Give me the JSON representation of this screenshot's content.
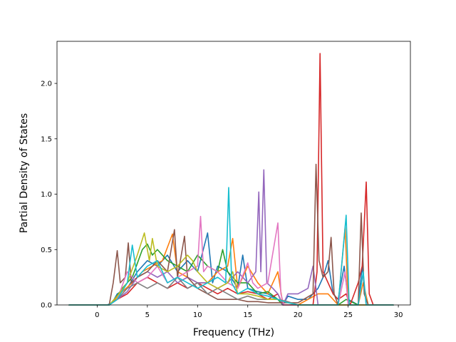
{
  "chart_data": {
    "type": "line",
    "title": "",
    "xlabel": "Frequency (THz)",
    "ylabel": "Partial Density of States",
    "xlim": [
      -4.0,
      31.2
    ],
    "ylim": [
      0,
      2.38
    ],
    "x_ticks": [
      0,
      5,
      10,
      15,
      20,
      25,
      30
    ],
    "y_ticks": [
      0.0,
      0.5,
      1.0,
      1.5,
      2.0
    ],
    "y_tick_labels": [
      "0.0",
      "0.5",
      "1.0",
      "1.5",
      "2.0"
    ],
    "grid": false,
    "legend": "none",
    "series": [
      {
        "color": "#1f77b4",
        "points": [
          [
            -2.8,
            0
          ],
          [
            1,
            0
          ],
          [
            1.5,
            0.02
          ],
          [
            2,
            0.1
          ],
          [
            3,
            0.15
          ],
          [
            4,
            0.3
          ],
          [
            5,
            0.4
          ],
          [
            6,
            0.35
          ],
          [
            7,
            0.45
          ],
          [
            8,
            0.3
          ],
          [
            9,
            0.4
          ],
          [
            10,
            0.3
          ],
          [
            11,
            0.65
          ],
          [
            11.5,
            0.2
          ],
          [
            12,
            0.35
          ],
          [
            13,
            0.3
          ],
          [
            14,
            0.15
          ],
          [
            14.5,
            0.45
          ],
          [
            15,
            0.15
          ],
          [
            16,
            0.12
          ],
          [
            17,
            0.1
          ],
          [
            18,
            0.05
          ],
          [
            18.5,
            0
          ],
          [
            19,
            0.08
          ],
          [
            20,
            0.05
          ],
          [
            21,
            0.05
          ],
          [
            22,
            0.15
          ],
          [
            22.5,
            0.25
          ],
          [
            23,
            0.4
          ],
          [
            23.5,
            0.1
          ],
          [
            24,
            0.05
          ],
          [
            24.6,
            0.35
          ],
          [
            25,
            0.05
          ],
          [
            26,
            0
          ],
          [
            26.4,
            0.35
          ],
          [
            26.8,
            0
          ],
          [
            29.5,
            0
          ]
        ]
      },
      {
        "color": "#ff7f0e",
        "points": [
          [
            -2.8,
            0
          ],
          [
            1.2,
            0
          ],
          [
            1.8,
            0.05
          ],
          [
            2.5,
            0.12
          ],
          [
            3.5,
            0.2
          ],
          [
            4.5,
            0.3
          ],
          [
            5.5,
            0.35
          ],
          [
            6.5,
            0.4
          ],
          [
            7.5,
            0.64
          ],
          [
            8,
            0.3
          ],
          [
            9,
            0.25
          ],
          [
            10,
            0.2
          ],
          [
            11,
            0.2
          ],
          [
            12,
            0.3
          ],
          [
            13,
            0.35
          ],
          [
            13.5,
            0.6
          ],
          [
            14,
            0.15
          ],
          [
            15,
            0.35
          ],
          [
            16,
            0.2
          ],
          [
            17,
            0.1
          ],
          [
            18,
            0.3
          ],
          [
            18.5,
            0
          ],
          [
            20,
            0
          ],
          [
            22,
            0.1
          ],
          [
            23,
            0.1
          ],
          [
            24,
            0
          ],
          [
            24.7,
            0.7
          ],
          [
            25,
            0
          ],
          [
            26,
            0
          ],
          [
            26.5,
            0.2
          ],
          [
            27,
            0
          ],
          [
            29.5,
            0
          ]
        ]
      },
      {
        "color": "#2ca02c",
        "points": [
          [
            -2.8,
            0
          ],
          [
            1.2,
            0
          ],
          [
            1.8,
            0.06
          ],
          [
            2.5,
            0.15
          ],
          [
            3.5,
            0.25
          ],
          [
            4.5,
            0.5
          ],
          [
            5,
            0.55
          ],
          [
            5.5,
            0.45
          ],
          [
            6,
            0.5
          ],
          [
            7,
            0.4
          ],
          [
            8,
            0.35
          ],
          [
            9,
            0.3
          ],
          [
            10,
            0.45
          ],
          [
            11,
            0.35
          ],
          [
            12,
            0.3
          ],
          [
            12.5,
            0.5
          ],
          [
            13,
            0.3
          ],
          [
            14,
            0.2
          ],
          [
            15,
            0.2
          ],
          [
            16,
            0.1
          ],
          [
            17,
            0.12
          ],
          [
            18,
            0.05
          ],
          [
            18.5,
            0
          ],
          [
            20,
            0
          ],
          [
            22,
            0
          ],
          [
            24,
            0
          ],
          [
            24.8,
            0.05
          ],
          [
            26,
            0
          ],
          [
            29.5,
            0
          ]
        ]
      },
      {
        "color": "#d62728",
        "points": [
          [
            -2.8,
            0
          ],
          [
            1.2,
            0
          ],
          [
            2,
            0.05
          ],
          [
            3,
            0.1
          ],
          [
            4,
            0.2
          ],
          [
            5,
            0.25
          ],
          [
            6,
            0.2
          ],
          [
            7,
            0.15
          ],
          [
            8,
            0.2
          ],
          [
            9,
            0.15
          ],
          [
            10,
            0.2
          ],
          [
            11,
            0.15
          ],
          [
            12,
            0.1
          ],
          [
            13,
            0.15
          ],
          [
            14,
            0.1
          ],
          [
            15,
            0.12
          ],
          [
            16,
            0.1
          ],
          [
            17,
            0.05
          ],
          [
            18,
            0.1
          ],
          [
            18.5,
            0
          ],
          [
            21.5,
            0
          ],
          [
            21.9,
            0.3
          ],
          [
            22.2,
            2.27
          ],
          [
            22.5,
            0.3
          ],
          [
            23,
            0.2
          ],
          [
            23.5,
            0.1
          ],
          [
            24,
            0.05
          ],
          [
            24.8,
            0.1
          ],
          [
            25.2,
            0
          ],
          [
            26,
            0.2
          ],
          [
            26.4,
            0.35
          ],
          [
            26.8,
            1.11
          ],
          [
            27.1,
            0.1
          ],
          [
            27.5,
            0
          ],
          [
            29.5,
            0
          ]
        ]
      },
      {
        "color": "#9467bd",
        "points": [
          [
            -2.8,
            0
          ],
          [
            1.2,
            0
          ],
          [
            2,
            0.05
          ],
          [
            3,
            0.12
          ],
          [
            4,
            0.25
          ],
          [
            5,
            0.3
          ],
          [
            6,
            0.25
          ],
          [
            7,
            0.3
          ],
          [
            8,
            0.2
          ],
          [
            9,
            0.25
          ],
          [
            10,
            0.2
          ],
          [
            11,
            0.2
          ],
          [
            12,
            0.15
          ],
          [
            13,
            0.2
          ],
          [
            14,
            0.3
          ],
          [
            15,
            0.2
          ],
          [
            15.8,
            0.3
          ],
          [
            16.1,
            1.02
          ],
          [
            16.3,
            0.3
          ],
          [
            16.6,
            1.22
          ],
          [
            16.9,
            0.2
          ],
          [
            17.5,
            0.15
          ],
          [
            18,
            0.1
          ],
          [
            18.5,
            0
          ],
          [
            19,
            0.1
          ],
          [
            20,
            0.1
          ],
          [
            21,
            0.15
          ],
          [
            21.5,
            0.35
          ],
          [
            21.8,
            0.15
          ],
          [
            22,
            0
          ],
          [
            24,
            0
          ],
          [
            26,
            0
          ],
          [
            29.5,
            0
          ]
        ]
      },
      {
        "color": "#8c564b",
        "points": [
          [
            -2.8,
            0
          ],
          [
            1.2,
            0
          ],
          [
            1.6,
            0.2
          ],
          [
            2,
            0.49
          ],
          [
            2.3,
            0.2
          ],
          [
            2.8,
            0.25
          ],
          [
            3.1,
            0.56
          ],
          [
            3.4,
            0.2
          ],
          [
            4,
            0.25
          ],
          [
            5,
            0.3
          ],
          [
            6,
            0.4
          ],
          [
            7,
            0.3
          ],
          [
            7.7,
            0.68
          ],
          [
            8,
            0.25
          ],
          [
            8.7,
            0.62
          ],
          [
            9,
            0.25
          ],
          [
            10,
            0.15
          ],
          [
            11,
            0.1
          ],
          [
            12,
            0.05
          ],
          [
            13,
            0.05
          ],
          [
            14,
            0.05
          ],
          [
            15,
            0.03
          ],
          [
            16,
            0.03
          ],
          [
            17,
            0.02
          ],
          [
            18,
            0.02
          ],
          [
            20,
            0.02
          ],
          [
            21.5,
            0.1
          ],
          [
            21.8,
            1.27
          ],
          [
            22.1,
            0.4
          ],
          [
            22.5,
            0.25
          ],
          [
            23,
            0.3
          ],
          [
            23.3,
            0.61
          ],
          [
            23.6,
            0.1
          ],
          [
            24,
            0
          ],
          [
            26,
            0
          ],
          [
            26.3,
            0.83
          ],
          [
            26.6,
            0.1
          ],
          [
            27,
            0
          ],
          [
            29.5,
            0
          ]
        ]
      },
      {
        "color": "#e377c2",
        "points": [
          [
            -2.8,
            0
          ],
          [
            1.2,
            0
          ],
          [
            2,
            0.05
          ],
          [
            3,
            0.3
          ],
          [
            4,
            0.2
          ],
          [
            5,
            0.25
          ],
          [
            6,
            0.35
          ],
          [
            7,
            0.2
          ],
          [
            8,
            0.25
          ],
          [
            9,
            0.3
          ],
          [
            10,
            0.35
          ],
          [
            10.3,
            0.8
          ],
          [
            10.6,
            0.3
          ],
          [
            11,
            0.35
          ],
          [
            12,
            0.3
          ],
          [
            13,
            0.2
          ],
          [
            14,
            0.15
          ],
          [
            15,
            0.38
          ],
          [
            15.5,
            0.2
          ],
          [
            16,
            0.15
          ],
          [
            17,
            0.2
          ],
          [
            18,
            0.74
          ],
          [
            18.3,
            0.1
          ],
          [
            18.6,
            0
          ],
          [
            20,
            0
          ],
          [
            22,
            0
          ],
          [
            24,
            0
          ],
          [
            24.7,
            0.3
          ],
          [
            25,
            0
          ],
          [
            26,
            0
          ],
          [
            29.5,
            0
          ]
        ]
      },
      {
        "color": "#7f7f7f",
        "points": [
          [
            -2.8,
            0
          ],
          [
            1.2,
            0
          ],
          [
            2,
            0.05
          ],
          [
            3,
            0.15
          ],
          [
            4,
            0.2
          ],
          [
            5,
            0.15
          ],
          [
            6,
            0.2
          ],
          [
            7,
            0.15
          ],
          [
            8,
            0.25
          ],
          [
            9,
            0.15
          ],
          [
            10,
            0.2
          ],
          [
            11,
            0.1
          ],
          [
            12,
            0.15
          ],
          [
            13,
            0.1
          ],
          [
            14,
            0.05
          ],
          [
            15,
            0.08
          ],
          [
            16,
            0.05
          ],
          [
            17,
            0.05
          ],
          [
            18,
            0.05
          ],
          [
            19,
            0.03
          ],
          [
            20,
            0
          ],
          [
            22,
            0
          ],
          [
            24,
            0
          ],
          [
            26,
            0
          ],
          [
            29.5,
            0
          ]
        ]
      },
      {
        "color": "#bcbd22",
        "points": [
          [
            -2.8,
            0
          ],
          [
            1.2,
            0
          ],
          [
            2,
            0.08
          ],
          [
            3,
            0.2
          ],
          [
            4,
            0.45
          ],
          [
            4.7,
            0.65
          ],
          [
            5.2,
            0.4
          ],
          [
            5.5,
            0.6
          ],
          [
            6,
            0.35
          ],
          [
            7,
            0.3
          ],
          [
            8,
            0.35
          ],
          [
            9,
            0.45
          ],
          [
            9.5,
            0.4
          ],
          [
            10,
            0.3
          ],
          [
            11,
            0.2
          ],
          [
            12,
            0.15
          ],
          [
            13,
            0.2
          ],
          [
            13.5,
            0.3
          ],
          [
            14,
            0.1
          ],
          [
            15,
            0.1
          ],
          [
            16,
            0.08
          ],
          [
            17,
            0.05
          ],
          [
            18,
            0.05
          ],
          [
            19,
            0.02
          ],
          [
            20,
            0
          ],
          [
            24,
            0
          ],
          [
            26,
            0
          ],
          [
            29.5,
            0
          ]
        ]
      },
      {
        "color": "#17becf",
        "points": [
          [
            -2.8,
            0
          ],
          [
            1.2,
            0
          ],
          [
            2,
            0.05
          ],
          [
            3,
            0.2
          ],
          [
            3.5,
            0.54
          ],
          [
            4,
            0.25
          ],
          [
            5,
            0.35
          ],
          [
            6,
            0.4
          ],
          [
            7,
            0.2
          ],
          [
            8,
            0.25
          ],
          [
            9,
            0.2
          ],
          [
            10,
            0.15
          ],
          [
            11,
            0.2
          ],
          [
            12,
            0.25
          ],
          [
            12.8,
            0.2
          ],
          [
            13.1,
            1.06
          ],
          [
            13.4,
            0.2
          ],
          [
            14,
            0.1
          ],
          [
            15,
            0.15
          ],
          [
            16,
            0.1
          ],
          [
            17,
            0.08
          ],
          [
            18,
            0.05
          ],
          [
            19,
            0.02
          ],
          [
            20,
            0
          ],
          [
            22,
            0
          ],
          [
            24,
            0
          ],
          [
            24.8,
            0.81
          ],
          [
            25.1,
            0
          ],
          [
            26,
            0
          ],
          [
            26.5,
            0.3
          ],
          [
            26.8,
            0
          ],
          [
            29.5,
            0
          ]
        ]
      }
    ]
  }
}
